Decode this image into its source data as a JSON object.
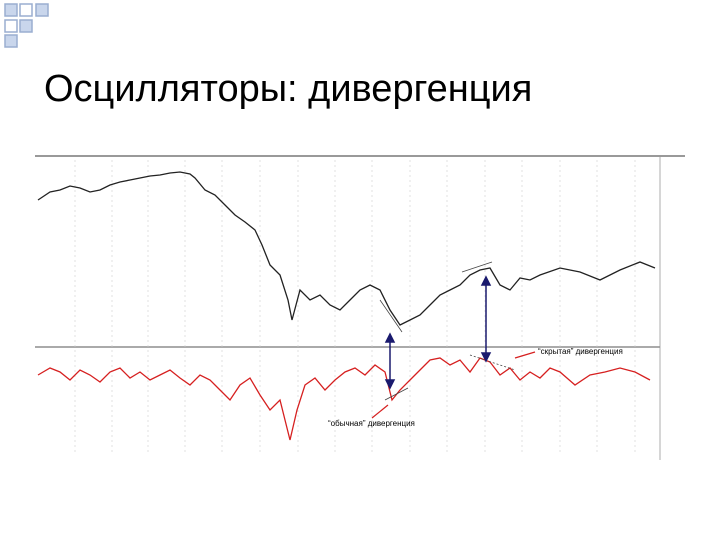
{
  "header": {
    "title": "Осцилляторы: дивергенция"
  },
  "annotations": [
    "“обычная” дивергенция",
    "“скрытая” дивергенция"
  ]
}
